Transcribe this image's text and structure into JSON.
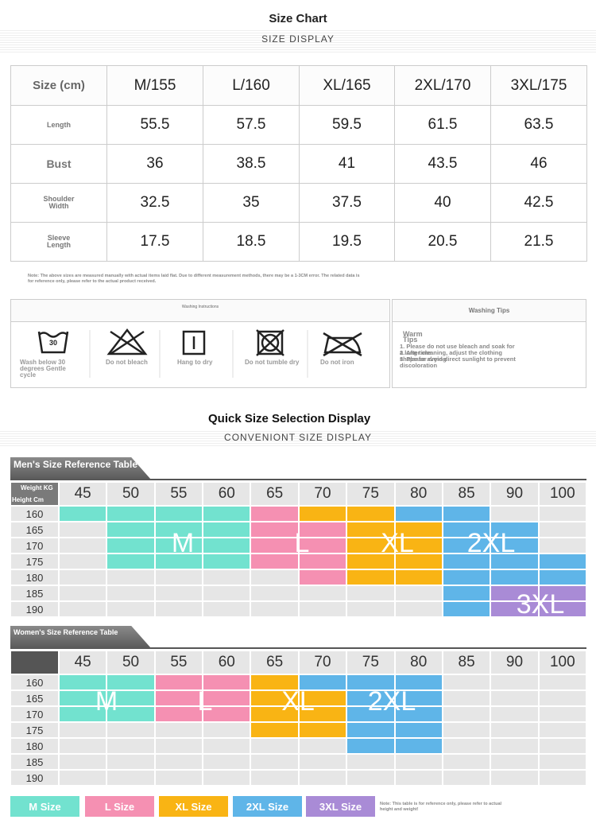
{
  "size_chart": {
    "title": "Size Chart",
    "subtitle": "SIZE DISPLAY",
    "table": {
      "header": [
        "Size (cm)",
        "M/155",
        "L/160",
        "XL/165",
        "2XL/170",
        "3XL/175"
      ],
      "rows": [
        [
          "Length",
          "55.5",
          "57.5",
          "59.5",
          "61.5",
          "63.5"
        ],
        [
          "Bust",
          "36",
          "38.5",
          "41",
          "43.5",
          "46"
        ],
        [
          "Shoulder Width",
          "32.5",
          "35",
          "37.5",
          "40",
          "42.5"
        ],
        [
          "Sleeve Length",
          "17.5",
          "18.5",
          "19.5",
          "20.5",
          "21.5"
        ]
      ]
    },
    "note": "Note: The above sizes are measured manually with actual items laid flat. Due to different measurement methods, there may be a 1-3CM error. The related data is for reference only, please refer to the actual product received."
  },
  "washing": {
    "title": "Washing Instructions",
    "icons": [
      {
        "number": "30",
        "label": "Wash below 30 degrees Gentle cycle"
      },
      {
        "label": "Do not bleach"
      },
      {
        "label": "Hang to dry"
      },
      {
        "label": "Do not tumble dry"
      },
      {
        "label": "Do not iron"
      }
    ],
    "tips_title": "Washing Tips",
    "tips": [
      "Warm Tips",
      "1. Please do not use bleach and soak for a long time",
      "2. After cleaning, adjust the clothing shape for drying",
      "3. Please avoid direct sunlight to prevent discoloration"
    ]
  },
  "quick": {
    "title": "Quick Size Selection Display",
    "subtitle": "CONVENIONT SIZE DISPLAY",
    "weights": [
      "45",
      "50",
      "55",
      "60",
      "65",
      "70",
      "75",
      "80",
      "85",
      "90",
      "100"
    ],
    "heights": [
      "160",
      "165",
      "170",
      "175",
      "180",
      "185",
      "190"
    ],
    "men": {
      "title": "Men's Size Reference Table",
      "weight_label": "Weight KG",
      "height_label": "Height Cm",
      "cells": [
        [
          "M",
          "M",
          "M",
          "M",
          "L",
          "XL",
          "XL",
          "2XL",
          "2XL",
          null,
          null
        ],
        [
          null,
          "M",
          "M",
          "M",
          "L",
          "L",
          "XL",
          "XL",
          "2XL",
          "2XL",
          null
        ],
        [
          null,
          "M",
          "M",
          "M",
          "L",
          "L",
          "XL",
          "XL",
          "2XL",
          "2XL",
          null
        ],
        [
          null,
          "M",
          "M",
          "M",
          "L",
          "L",
          "XL",
          "XL",
          "2XL",
          "2XL",
          "2XL"
        ],
        [
          null,
          null,
          null,
          null,
          null,
          "L",
          "XL",
          "XL",
          "2XL",
          "2XL",
          "2XL"
        ],
        [
          null,
          null,
          null,
          null,
          null,
          null,
          null,
          null,
          "2XL",
          "3XL",
          "3XL"
        ],
        [
          null,
          null,
          null,
          null,
          null,
          null,
          null,
          null,
          "2XL",
          "3XL",
          "3XL"
        ]
      ],
      "labels": [
        "M",
        "L",
        "XL",
        "2XL",
        "3XL"
      ]
    },
    "women": {
      "title": "Women's Size Reference Table",
      "cells": [
        [
          "M",
          "M",
          "L",
          "L",
          "XL",
          "2XL",
          "2XL",
          "2XL",
          null,
          null,
          null
        ],
        [
          "M",
          "M",
          "L",
          "L",
          "XL",
          "XL",
          "2XL",
          "2XL",
          null,
          null,
          null
        ],
        [
          "M",
          "M",
          "L",
          "L",
          "XL",
          "XL",
          "2XL",
          "2XL",
          null,
          null,
          null
        ],
        [
          null,
          null,
          null,
          null,
          "XL",
          "XL",
          "2XL",
          "2XL",
          null,
          null,
          null
        ],
        [
          null,
          null,
          null,
          null,
          null,
          null,
          "2XL",
          "2XL",
          null,
          null,
          null
        ],
        [
          null,
          null,
          null,
          null,
          null,
          null,
          null,
          null,
          null,
          null,
          null
        ],
        [
          null,
          null,
          null,
          null,
          null,
          null,
          null,
          null,
          null,
          null,
          null
        ]
      ],
      "labels": [
        "M",
        "L",
        "XL",
        "2XL"
      ]
    },
    "legend": [
      {
        "code": "M",
        "label": "M Size",
        "color": "#72e2cf"
      },
      {
        "code": "L",
        "label": "L Size",
        "color": "#f590b2"
      },
      {
        "code": "XL",
        "label": "XL Size",
        "color": "#f9b414"
      },
      {
        "code": "2XL",
        "label": "2XL Size",
        "color": "#5fb5e8"
      },
      {
        "code": "3XL",
        "label": "3XL Size",
        "color": "#a98bd6"
      }
    ],
    "note": "Note: This table is for reference only, please refer to actual height and weight!"
  }
}
